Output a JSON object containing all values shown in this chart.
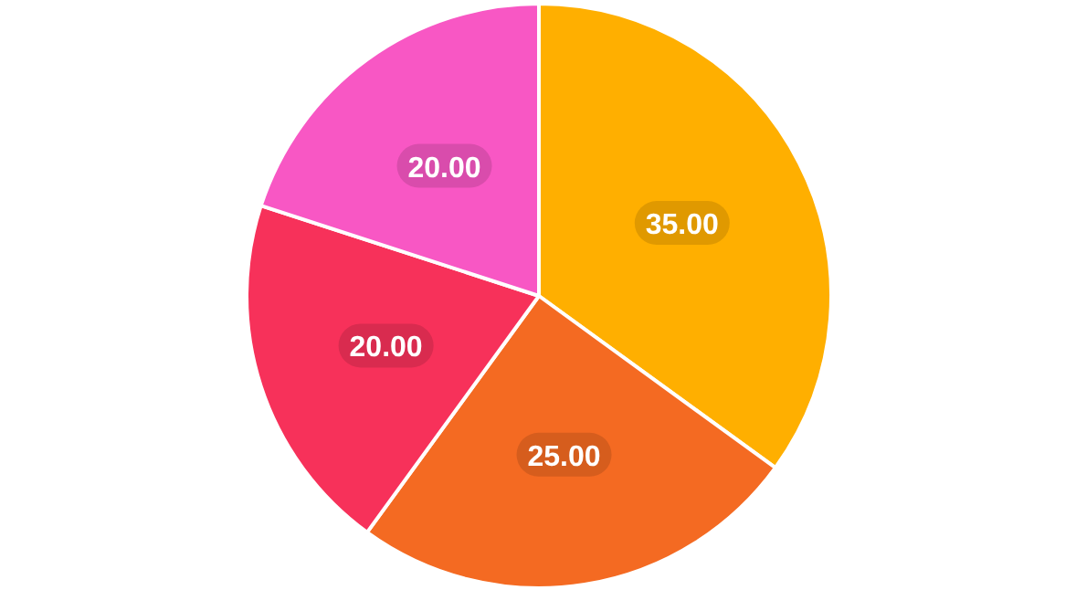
{
  "chart_data": {
    "type": "pie",
    "categories": [
      null,
      null,
      null,
      null
    ],
    "values": [
      35,
      25,
      20,
      20
    ],
    "colors": [
      "#ffaf00",
      "#f46a22",
      "#f7315a",
      "#f857c4"
    ],
    "value_labels": [
      "35.00",
      "25.00",
      "20.00",
      "20.00"
    ]
  }
}
